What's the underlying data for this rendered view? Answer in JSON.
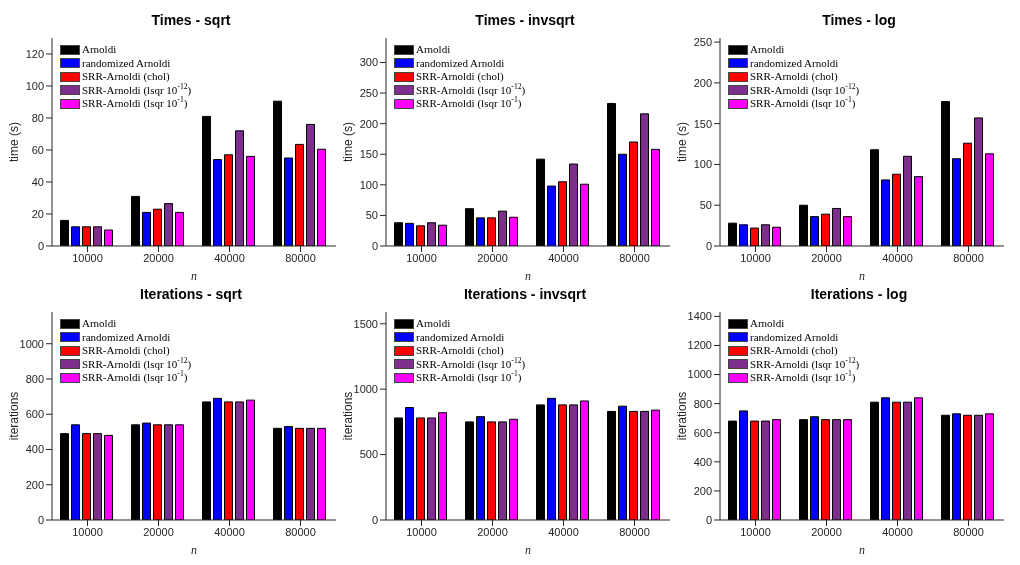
{
  "chart_data": [
    {
      "type": "bar",
      "title": "Times - sqrt",
      "xlabel": "n",
      "ylabel": "time (s)",
      "categories": [
        "10000",
        "20000",
        "40000",
        "80000"
      ],
      "ylim": [
        0,
        130
      ],
      "yticks": [
        0,
        20,
        40,
        60,
        80,
        100,
        120
      ],
      "legend": "top left",
      "series": [
        {
          "name": "Arnoldi",
          "color": "#000000",
          "values": [
            16,
            31,
            81,
            90.5
          ]
        },
        {
          "name": "randomized Arnoldi",
          "color": "#0000ff",
          "values": [
            12,
            21,
            54,
            55
          ]
        },
        {
          "name": "SRR-Arnoldi (chol)",
          "color": "#ff0000",
          "values": [
            12,
            23,
            57,
            63.5
          ]
        },
        {
          "name": "SRR-Arnoldi (lsqr 10$^{-12}$)",
          "color": "#7e2f8e",
          "values": [
            12,
            26.5,
            72,
            76
          ]
        },
        {
          "name": "SRR-Arnoldi (lsqr 10$^{-1}$)",
          "color": "#ff00ff",
          "values": [
            10,
            21,
            56,
            60.5
          ]
        }
      ]
    },
    {
      "type": "bar",
      "title": "Times - invsqrt",
      "xlabel": "n",
      "ylabel": "time (s)",
      "categories": [
        "10000",
        "20000",
        "40000",
        "80000"
      ],
      "ylim": [
        0,
        340
      ],
      "yticks": [
        0,
        50,
        100,
        150,
        200,
        250,
        300
      ],
      "legend": "top left",
      "series": [
        {
          "name": "Arnoldi",
          "color": "#000000",
          "values": [
            38,
            61,
            142,
            233
          ]
        },
        {
          "name": "randomized Arnoldi",
          "color": "#0000ff",
          "values": [
            37,
            46,
            98,
            150
          ]
        },
        {
          "name": "SRR-Arnoldi (chol)",
          "color": "#ff0000",
          "values": [
            33,
            46,
            105,
            170
          ]
        },
        {
          "name": "SRR-Arnoldi (lsqr 10$^{-12}$)",
          "color": "#7e2f8e",
          "values": [
            38,
            57,
            134,
            216
          ]
        },
        {
          "name": "SRR-Arnoldi (lsqr 10$^{-1}$)",
          "color": "#ff00ff",
          "values": [
            34,
            47,
            101,
            158
          ]
        }
      ]
    },
    {
      "type": "bar",
      "title": "Times - log",
      "xlabel": "n",
      "ylabel": "time (s)",
      "categories": [
        "10000",
        "20000",
        "40000",
        "80000"
      ],
      "ylim": [
        0,
        255
      ],
      "yticks": [
        0,
        50,
        100,
        150,
        200,
        250
      ],
      "legend": "top left",
      "series": [
        {
          "name": "Arnoldi",
          "color": "#000000",
          "values": [
            28,
            50,
            118,
            177
          ]
        },
        {
          "name": "randomized Arnoldi",
          "color": "#0000ff",
          "values": [
            26,
            36,
            81,
            107
          ]
        },
        {
          "name": "SRR-Arnoldi (chol)",
          "color": "#ff0000",
          "values": [
            22,
            39,
            88,
            126
          ]
        },
        {
          "name": "SRR-Arnoldi (lsqr 10$^{-12}$)",
          "color": "#7e2f8e",
          "values": [
            26,
            46,
            110,
            157
          ]
        },
        {
          "name": "SRR-Arnoldi (lsqr 10$^{-1}$)",
          "color": "#ff00ff",
          "values": [
            23,
            36,
            85,
            113
          ]
        }
      ]
    },
    {
      "type": "bar",
      "title": "Iterations - sqrt",
      "xlabel": "n",
      "ylabel": "iterations",
      "categories": [
        "10000",
        "20000",
        "40000",
        "80000"
      ],
      "ylim": [
        0,
        1180
      ],
      "yticks": [
        0,
        200,
        400,
        600,
        800,
        1000
      ],
      "legend": "top left",
      "series": [
        {
          "name": "Arnoldi",
          "color": "#000000",
          "values": [
            490,
            540,
            670,
            520
          ]
        },
        {
          "name": "randomized Arnoldi",
          "color": "#0000ff",
          "values": [
            540,
            550,
            690,
            530
          ]
        },
        {
          "name": "SRR-Arnoldi (chol)",
          "color": "#ff0000",
          "values": [
            490,
            540,
            670,
            520
          ]
        },
        {
          "name": "SRR-Arnoldi (lsqr 10$^{-12}$)",
          "color": "#7e2f8e",
          "values": [
            490,
            540,
            670,
            520
          ]
        },
        {
          "name": "SRR-Arnoldi (lsqr 10$^{-1}$)",
          "color": "#ff00ff",
          "values": [
            480,
            540,
            680,
            520
          ]
        }
      ]
    },
    {
      "type": "bar",
      "title": "Iterations - invsqrt",
      "xlabel": "n",
      "ylabel": "iterations",
      "categories": [
        "10000",
        "20000",
        "40000",
        "80000"
      ],
      "ylim": [
        0,
        1590
      ],
      "yticks": [
        0,
        500,
        1000,
        1500
      ],
      "legend": "top left",
      "series": [
        {
          "name": "Arnoldi",
          "color": "#000000",
          "values": [
            780,
            750,
            880,
            830
          ]
        },
        {
          "name": "randomized Arnoldi",
          "color": "#0000ff",
          "values": [
            860,
            790,
            930,
            870
          ]
        },
        {
          "name": "SRR-Arnoldi (chol)",
          "color": "#ff0000",
          "values": [
            780,
            750,
            880,
            830
          ]
        },
        {
          "name": "SRR-Arnoldi (lsqr 10$^{-12}$)",
          "color": "#7e2f8e",
          "values": [
            780,
            750,
            880,
            830
          ]
        },
        {
          "name": "SRR-Arnoldi (lsqr 10$^{-1}$)",
          "color": "#ff00ff",
          "values": [
            820,
            770,
            910,
            840
          ]
        }
      ]
    },
    {
      "type": "bar",
      "title": "Iterations - log",
      "xlabel": "n",
      "ylabel": "iterations",
      "categories": [
        "10000",
        "20000",
        "40000",
        "80000"
      ],
      "ylim": [
        0,
        1430
      ],
      "yticks": [
        0,
        200,
        400,
        600,
        800,
        1000,
        1200,
        1400
      ],
      "legend": "top left",
      "series": [
        {
          "name": "Arnoldi",
          "color": "#000000",
          "values": [
            680,
            690,
            810,
            720
          ]
        },
        {
          "name": "randomized Arnoldi",
          "color": "#0000ff",
          "values": [
            750,
            710,
            840,
            730
          ]
        },
        {
          "name": "SRR-Arnoldi (chol)",
          "color": "#ff0000",
          "values": [
            680,
            690,
            810,
            720
          ]
        },
        {
          "name": "SRR-Arnoldi (lsqr 10$^{-12}$)",
          "color": "#7e2f8e",
          "values": [
            680,
            690,
            810,
            720
          ]
        },
        {
          "name": "SRR-Arnoldi (lsqr 10$^{-1}$)",
          "color": "#ff00ff",
          "values": [
            690,
            690,
            840,
            730
          ]
        }
      ]
    }
  ]
}
